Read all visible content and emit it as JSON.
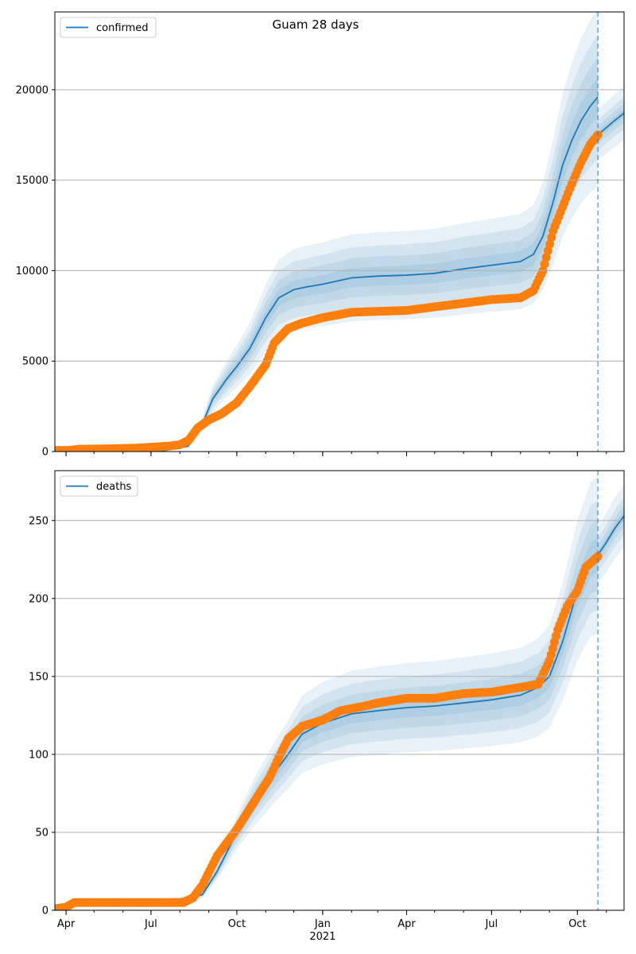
{
  "title": "Guam 28 days",
  "colors": {
    "model": "#1f77b4",
    "observed": "#ff7f0e",
    "grid": "#b0b0b0",
    "band": "#1f77b4"
  },
  "x_axis": {
    "start": "2020-03-20",
    "end": "2021-11-20",
    "ticks": [
      {
        "date": "2020-04-01",
        "label": "Apr"
      },
      {
        "date": "2020-07-01",
        "label": "Jul"
      },
      {
        "date": "2020-10-01",
        "label": "Oct"
      },
      {
        "date": "2021-01-01",
        "label": "Jan",
        "sublabel": "2021"
      },
      {
        "date": "2021-04-01",
        "label": "Apr"
      },
      {
        "date": "2021-07-01",
        "label": "Jul"
      },
      {
        "date": "2021-10-01",
        "label": "Oct"
      }
    ],
    "forecast_date": "2021-10-23"
  },
  "chart_data": [
    {
      "type": "line",
      "legend": "confirmed",
      "legend_position": "upper-left",
      "grid": "horizontal",
      "ylim": [
        0,
        24300
      ],
      "yticks": [
        0,
        5000,
        10000,
        15000,
        20000
      ],
      "model": {
        "x": [
          "2020-03-20",
          "2020-05-01",
          "2020-06-15",
          "2020-07-15",
          "2020-08-10",
          "2020-08-25",
          "2020-09-05",
          "2020-09-20",
          "2020-10-01",
          "2020-10-15",
          "2020-11-01",
          "2020-11-15",
          "2020-12-01",
          "2020-12-15",
          "2021-01-01",
          "2021-02-01",
          "2021-03-01",
          "2021-04-01",
          "2021-05-01",
          "2021-06-01",
          "2021-07-01",
          "2021-08-01",
          "2021-08-15",
          "2021-08-25",
          "2021-09-05",
          "2021-09-15",
          "2021-09-25",
          "2021-10-05",
          "2021-10-15",
          "2021-10-23"
        ],
        "y": [
          0,
          5,
          20,
          50,
          300,
          1500,
          2900,
          4000,
          4700,
          5700,
          7400,
          8500,
          8950,
          9100,
          9250,
          9600,
          9700,
          9750,
          9850,
          10100,
          10300,
          10500,
          10900,
          11900,
          13800,
          15800,
          17200,
          18300,
          19100,
          19600
        ],
        "band_scale": [
          1,
          0.7,
          0.45,
          0.22
        ]
      },
      "forecast": {
        "x": [
          "2021-10-23",
          "2021-11-01",
          "2021-11-10",
          "2021-11-20"
        ],
        "y": [
          17500,
          17900,
          18300,
          18700
        ],
        "band_scale": [
          1,
          0.6,
          0.35,
          0.15
        ]
      },
      "observed": {
        "x": [
          "2020-03-20",
          "2020-04-05",
          "2020-04-15",
          "2020-05-15",
          "2020-06-15",
          "2020-07-01",
          "2020-07-20",
          "2020-08-01",
          "2020-08-10",
          "2020-08-20",
          "2020-09-01",
          "2020-09-15",
          "2020-10-01",
          "2020-10-15",
          "2020-11-01",
          "2020-11-10",
          "2020-11-25",
          "2020-12-10",
          "2021-01-01",
          "2021-02-01",
          "2021-03-01",
          "2021-04-01",
          "2021-05-01",
          "2021-06-01",
          "2021-07-01",
          "2021-08-01",
          "2021-08-15",
          "2021-08-25",
          "2021-09-05",
          "2021-09-15",
          "2021-09-25",
          "2021-10-05",
          "2021-10-15",
          "2021-10-23"
        ],
        "y": [
          60,
          70,
          130,
          150,
          190,
          240,
          300,
          380,
          600,
          1300,
          1750,
          2100,
          2700,
          3600,
          4800,
          6000,
          6800,
          7100,
          7400,
          7700,
          7750,
          7800,
          8000,
          8200,
          8400,
          8500,
          8900,
          10000,
          12200,
          13500,
          14800,
          16000,
          17000,
          17500
        ]
      }
    },
    {
      "type": "line",
      "legend": "deaths",
      "legend_position": "upper-left",
      "grid": "horizontal",
      "ylim": [
        0,
        282
      ],
      "yticks": [
        0,
        50,
        100,
        150,
        200,
        250
      ],
      "model": {
        "x": [
          "2020-03-20",
          "2020-04-05",
          "2020-05-01",
          "2020-07-01",
          "2020-08-01",
          "2020-08-25",
          "2020-09-10",
          "2020-10-01",
          "2020-10-20",
          "2020-11-10",
          "2020-11-25",
          "2020-12-10",
          "2021-01-01",
          "2021-02-01",
          "2021-03-01",
          "2021-04-01",
          "2021-05-01",
          "2021-06-01",
          "2021-07-01",
          "2021-08-01",
          "2021-08-20",
          "2021-09-01",
          "2021-09-15",
          "2021-10-01",
          "2021-10-15",
          "2021-10-23"
        ],
        "y": [
          1,
          2,
          5,
          6,
          7,
          10,
          25,
          50,
          70,
          88,
          100,
          113,
          120,
          126,
          128,
          130,
          131,
          133,
          135,
          138,
          143,
          150,
          172,
          205,
          225,
          228
        ],
        "band_scale": [
          1,
          0.7,
          0.45,
          0.22
        ]
      },
      "forecast": {
        "x": [
          "2021-10-23",
          "2021-11-01",
          "2021-11-10",
          "2021-11-20"
        ],
        "y": [
          228,
          236,
          245,
          253
        ],
        "band_scale": [
          1,
          0.6,
          0.35,
          0.15
        ]
      },
      "observed": {
        "x": [
          "2020-03-20",
          "2020-04-01",
          "2020-04-10",
          "2020-05-01",
          "2020-07-01",
          "2020-08-05",
          "2020-08-15",
          "2020-08-25",
          "2020-09-10",
          "2020-10-01",
          "2020-10-20",
          "2020-11-05",
          "2020-11-15",
          "2020-11-25",
          "2020-12-10",
          "2021-01-01",
          "2021-01-20",
          "2021-02-15",
          "2021-03-01",
          "2021-04-01",
          "2021-05-01",
          "2021-06-01",
          "2021-07-01",
          "2021-08-01",
          "2021-08-20",
          "2021-09-01",
          "2021-09-10",
          "2021-09-20",
          "2021-10-01",
          "2021-10-10",
          "2021-10-23"
        ],
        "y": [
          1,
          2,
          5,
          5,
          5,
          5,
          8,
          16,
          35,
          52,
          70,
          85,
          98,
          110,
          118,
          122,
          128,
          131,
          133,
          136,
          136,
          139,
          140,
          143,
          145,
          160,
          180,
          195,
          205,
          220,
          227
        ]
      }
    }
  ]
}
